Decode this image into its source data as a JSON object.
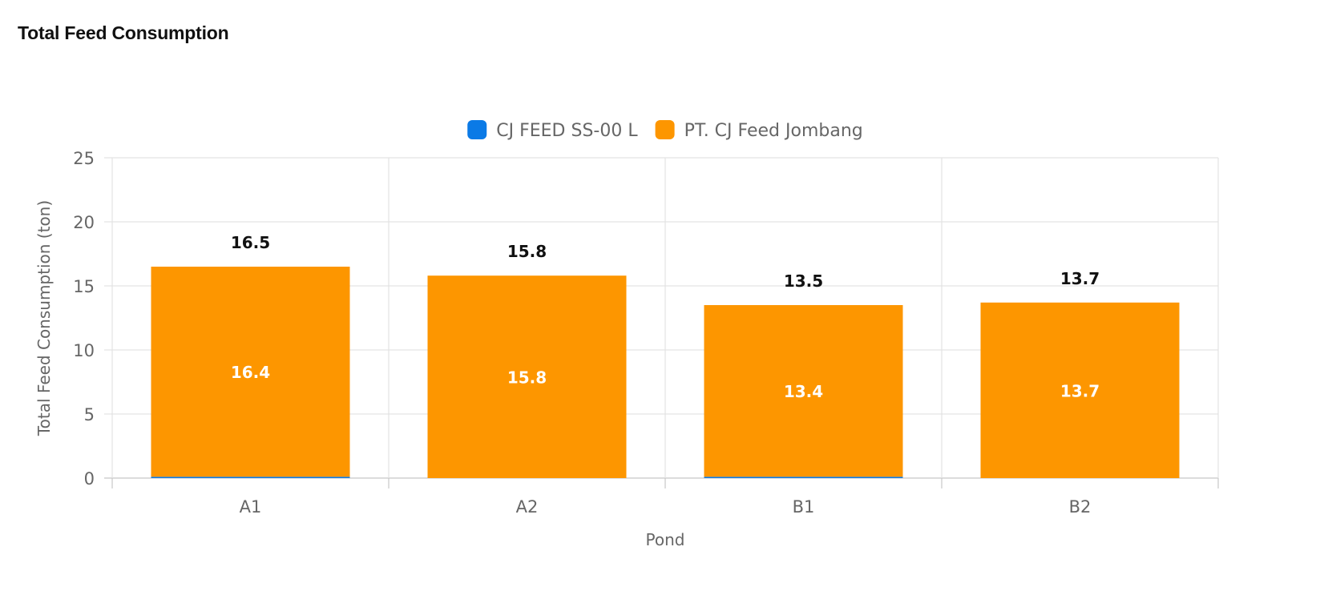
{
  "page": {
    "title": "Total Feed Consumption"
  },
  "chart_data": {
    "type": "bar",
    "stacked": true,
    "title": "Total Feed Consumption",
    "xlabel": "Pond",
    "ylabel": "Total Feed Consumption (ton)",
    "categories": [
      "A1",
      "A2",
      "B1",
      "B2"
    ],
    "ylim": [
      0,
      25
    ],
    "yticks": [
      0,
      5,
      10,
      15,
      20,
      25
    ],
    "grid": true,
    "legend_position": "top-center",
    "series": [
      {
        "name": "CJ FEED SS-00 L",
        "color": "#0b7ae6",
        "values": [
          0.1,
          0.0,
          0.1,
          0.0
        ]
      },
      {
        "name": "PT. CJ Feed Jombang",
        "color": "#fd9600",
        "values": [
          16.4,
          15.8,
          13.4,
          13.7
        ],
        "data_labels": [
          "16.4",
          "15.8",
          "13.4",
          "13.7"
        ]
      }
    ],
    "totals": [
      16.5,
      15.8,
      13.5,
      13.7
    ],
    "total_labels": [
      "16.5",
      "15.8",
      "13.5",
      "13.7"
    ]
  }
}
